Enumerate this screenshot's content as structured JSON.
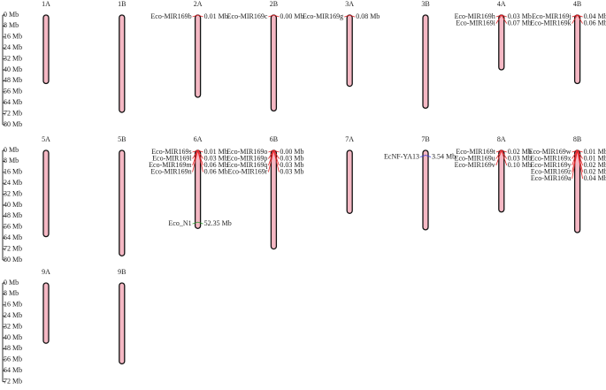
{
  "rows": [
    {
      "ticks": [
        {
          "value": 0,
          "label": "0 Mb"
        },
        {
          "value": 8,
          "label": "8 Mb"
        },
        {
          "value": 16,
          "label": "16 Mb"
        },
        {
          "value": 24,
          "label": "24 Mb"
        },
        {
          "value": 32,
          "label": "32 Mb"
        },
        {
          "value": 40,
          "label": "40 Mb"
        },
        {
          "value": 48,
          "label": "48 Mb"
        },
        {
          "value": 56,
          "label": "56 Mb"
        },
        {
          "value": 64,
          "label": "64 Mb"
        },
        {
          "value": 72,
          "label": "72 Mb"
        },
        {
          "value": 80,
          "label": "80 Mb"
        }
      ],
      "chromosomes": [
        {
          "name": "1A",
          "length": 50,
          "markers": []
        },
        {
          "name": "1B",
          "length": 71,
          "markers": []
        },
        {
          "name": "2A",
          "length": 60,
          "markers": [
            {
              "name": "Eco-MIR169b",
              "position": {
                "value": 0.01,
                "label": "0.01 Mb"
              },
              "color": "#e8262b"
            }
          ]
        },
        {
          "name": "2B",
          "length": 70,
          "markers": [
            {
              "name": "Eco-MIR169c",
              "position": {
                "value": 0.0,
                "label": "0.00 Mb"
              },
              "color": "#e8262b"
            }
          ]
        },
        {
          "name": "3A",
          "length": 52,
          "markers": [
            {
              "name": "Eco-MIR169g",
              "position": {
                "value": 0.08,
                "label": "0.08 Mb"
              },
              "color": "#e8262b"
            }
          ]
        },
        {
          "name": "3B",
          "length": 68,
          "markers": []
        },
        {
          "name": "4A",
          "length": 40,
          "markers": [
            {
              "name": "Eco-MIR169h",
              "position": {
                "value": 0.03,
                "label": "0.03 Mb"
              },
              "color": "#e8262b"
            },
            {
              "name": "Eco-MIR169i",
              "position": {
                "value": 0.07,
                "label": "0.07 Mb"
              },
              "color": "#e8262b"
            }
          ]
        },
        {
          "name": "4B",
          "length": 50,
          "markers": [
            {
              "name": "Eco-MIR169j",
              "position": {
                "value": 0.04,
                "label": "0.04 Mb"
              },
              "color": "#e8262b"
            },
            {
              "name": "Eco-MIR169k",
              "position": {
                "value": 0.06,
                "label": "0.06 Mb"
              },
              "color": "#e8262b"
            }
          ]
        }
      ]
    },
    {
      "ticks": [
        {
          "value": 0,
          "label": "0 Mb"
        },
        {
          "value": 8,
          "label": "8 Mb"
        },
        {
          "value": 16,
          "label": "16 Mb"
        },
        {
          "value": 24,
          "label": "24 Mb"
        },
        {
          "value": 32,
          "label": "32 Mb"
        },
        {
          "value": 40,
          "label": "40 Mb"
        },
        {
          "value": 48,
          "label": "48 Mb"
        },
        {
          "value": 56,
          "label": "56 Mb"
        },
        {
          "value": 64,
          "label": "64 Mb"
        },
        {
          "value": 72,
          "label": "72 Mb"
        },
        {
          "value": 80,
          "label": "80 Mb"
        }
      ],
      "chromosomes": [
        {
          "name": "5A",
          "length": 63,
          "markers": []
        },
        {
          "name": "5B",
          "length": 77,
          "markers": []
        },
        {
          "name": "6A",
          "length": 57,
          "markers": [
            {
              "name": "Eco-MIR169s",
              "position": {
                "value": 0.01,
                "label": "0.01 Mb"
              },
              "color": "#e8262b"
            },
            {
              "name": "Eco-MIR169l",
              "position": {
                "value": 0.03,
                "label": "0.03 Mb"
              },
              "color": "#e8262b"
            },
            {
              "name": "Eco-MIR169m",
              "position": {
                "value": 0.06,
                "label": "0.06 Mb"
              },
              "color": "#e8262b"
            },
            {
              "name": "Eco-MIR169n",
              "position": {
                "value": 0.06,
                "label": "0.06 Mb"
              },
              "color": "#e8262b"
            },
            {
              "name": "Eco_N1",
              "position": {
                "value": 52.35,
                "label": "52.35 Mb"
              },
              "color": "#2e9a2e"
            }
          ]
        },
        {
          "name": "6B",
          "length": 72,
          "markers": [
            {
              "name": "Eco-MIR169o",
              "position": {
                "value": 0.0,
                "label": "0.00 Mb"
              },
              "color": "#e8262b"
            },
            {
              "name": "Eco-MIR169p",
              "position": {
                "value": 0.03,
                "label": "0.03 Mb"
              },
              "color": "#e8262b"
            },
            {
              "name": "Eco-MIR169q",
              "position": {
                "value": 0.03,
                "label": "0.03 Mb"
              },
              "color": "#e8262b"
            },
            {
              "name": "Eco-MIR169r",
              "position": {
                "value": 0.03,
                "label": "0.03 Mb"
              },
              "color": "#e8262b"
            }
          ]
        },
        {
          "name": "7A",
          "length": 46,
          "markers": []
        },
        {
          "name": "7B",
          "length": 58,
          "markers": [
            {
              "name": "EcNF-YA13",
              "position": {
                "value": 3.54,
                "label": "3.54 Mb"
              },
              "color": "#3b3bd8"
            }
          ]
        },
        {
          "name": "8A",
          "length": 45,
          "markers": [
            {
              "name": "Eco-MIR169t",
              "position": {
                "value": 0.02,
                "label": "0.02 Mb"
              },
              "color": "#e8262b"
            },
            {
              "name": "Eco-MIR169u",
              "position": {
                "value": 0.03,
                "label": "0.03 Mb"
              },
              "color": "#e8262b"
            },
            {
              "name": "Eco-MIR169v",
              "position": {
                "value": 0.1,
                "label": "0.10 Mb"
              },
              "color": "#e8262b"
            }
          ]
        },
        {
          "name": "8B",
          "length": 60,
          "markers": [
            {
              "name": "Eco-MIR169w",
              "position": {
                "value": 0.01,
                "label": "0.01 Mb"
              },
              "color": "#e8262b"
            },
            {
              "name": "Eco-MIR169x",
              "position": {
                "value": 0.01,
                "label": "0.01 Mb"
              },
              "color": "#e8262b"
            },
            {
              "name": "Eco-MIR169y",
              "position": {
                "value": 0.02,
                "label": "0.02 Mb"
              },
              "color": "#e8262b"
            },
            {
              "name": "Eco-MIR169z",
              "position": {
                "value": 0.02,
                "label": "0.02 Mb"
              },
              "color": "#e8262b"
            },
            {
              "name": "Eco-MIR169a",
              "position": {
                "value": 0.04,
                "label": "0.04 Mb"
              },
              "color": "#e8262b"
            }
          ]
        }
      ]
    },
    {
      "ticks": [
        {
          "value": 0,
          "label": "0 Mb"
        },
        {
          "value": 8,
          "label": "8 Mb"
        },
        {
          "value": 16,
          "label": "16 Mb"
        },
        {
          "value": 24,
          "label": "24 Mb"
        },
        {
          "value": 32,
          "label": "32 Mb"
        },
        {
          "value": 40,
          "label": "40 Mb"
        },
        {
          "value": 48,
          "label": "48 Mb"
        },
        {
          "value": 56,
          "label": "56 Mb"
        },
        {
          "value": 64,
          "label": "64 Mb"
        },
        {
          "value": 72,
          "label": "72 Mb"
        }
      ],
      "chromosomes": [
        {
          "name": "9A",
          "length": 44,
          "markers": []
        },
        {
          "name": "9B",
          "length": 59,
          "markers": []
        }
      ]
    }
  ]
}
